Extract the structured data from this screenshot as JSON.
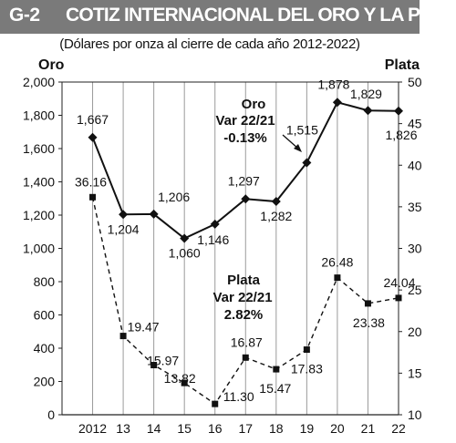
{
  "header": {
    "code": "G-2",
    "title": "COTIZ INTERNACIONAL DEL ORO Y LA PLATA",
    "subtitle": "(Dólares por onza al cierre de cada año 2012-2022)"
  },
  "chart_data": {
    "type": "line",
    "categories": [
      "2012",
      "13",
      "14",
      "15",
      "16",
      "17",
      "18",
      "19",
      "20",
      "21",
      "22"
    ],
    "series": [
      {
        "name": "Oro",
        "axis": "left",
        "style": "solid",
        "marker": "diamond",
        "values": [
          1667,
          1204,
          1206,
          1060,
          1146,
          1297,
          1282,
          1515,
          1878,
          1829,
          1826
        ],
        "labels": [
          "1,667",
          "1,204",
          "1,206",
          "1,060",
          "1,146",
          "1,297",
          "1,282",
          "1,515",
          "1,878",
          "1,829",
          "1,826"
        ]
      },
      {
        "name": "Plata",
        "axis": "right",
        "style": "dashed",
        "marker": "square",
        "values": [
          36.16,
          19.47,
          15.97,
          13.82,
          11.3,
          16.87,
          15.47,
          17.83,
          26.48,
          23.38,
          24.04
        ],
        "labels": [
          "36.16",
          "19.47",
          "15.97",
          "13.82",
          "11.30",
          "16.87",
          "15.47",
          "17.83",
          "26.48",
          "23.38",
          "24.04"
        ]
      }
    ],
    "left_axis": {
      "title": "Oro",
      "range": [
        0,
        2000
      ],
      "ticks": [
        0,
        200,
        400,
        600,
        800,
        1000,
        1200,
        1400,
        1600,
        1800,
        2000
      ],
      "tick_labels": [
        "0",
        "200",
        "400",
        "600",
        "800",
        "1,000",
        "1,200",
        "1,400",
        "1,600",
        "1,800",
        "2,000"
      ]
    },
    "right_axis": {
      "title": "Plata",
      "range": [
        10,
        50
      ],
      "ticks": [
        10,
        15,
        20,
        25,
        30,
        35,
        40,
        45,
        50
      ],
      "tick_labels": [
        "10",
        "15",
        "20",
        "25",
        "30",
        "35",
        "40",
        "45",
        "50"
      ]
    },
    "grid": "vertical",
    "annotations": [
      {
        "series": "Oro",
        "lines": [
          "Oro",
          "Var 22/21",
          "-0.13%"
        ]
      },
      {
        "series": "Plata",
        "lines": [
          "Plata",
          "Var 22/21",
          "2.82%"
        ]
      }
    ]
  }
}
